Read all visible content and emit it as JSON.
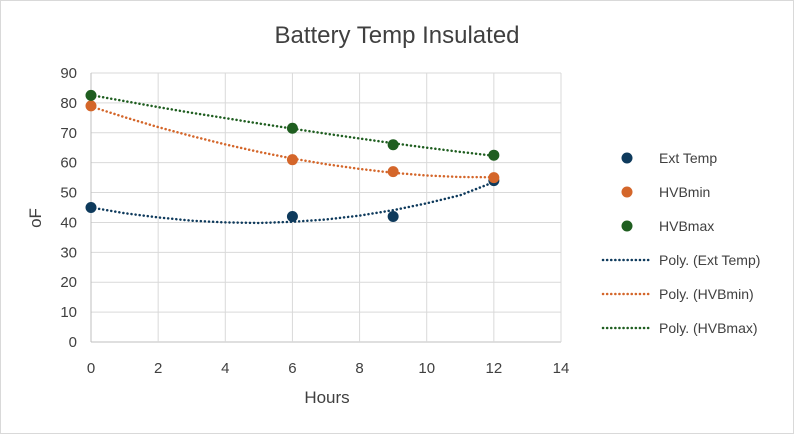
{
  "chart_data": {
    "type": "scatter",
    "title": "Battery Temp Insulated",
    "xlabel": "Hours",
    "ylabel": "oF",
    "xlim": [
      0,
      14
    ],
    "ylim": [
      0,
      90
    ],
    "x_ticks": [
      0,
      2,
      4,
      6,
      8,
      10,
      12,
      14
    ],
    "y_ticks": [
      0,
      10,
      20,
      30,
      40,
      50,
      60,
      70,
      80,
      90
    ],
    "grid": true,
    "legend_position": "right",
    "series": [
      {
        "name": "Ext Temp",
        "color": "#0e3a5c",
        "x": [
          0,
          6,
          9,
          12
        ],
        "y": [
          45,
          42,
          42,
          54
        ]
      },
      {
        "name": "HVBmin",
        "color": "#d4662a",
        "x": [
          0,
          6,
          9,
          12
        ],
        "y": [
          79,
          61,
          57,
          55
        ]
      },
      {
        "name": "HVBmax",
        "color": "#1f5e20",
        "x": [
          0,
          6,
          9,
          12
        ],
        "y": [
          82.5,
          71.5,
          66,
          62.5
        ]
      }
    ],
    "trendlines": [
      {
        "name": "Poly. (Ext Temp)",
        "color": "#0e3a5c",
        "type": "polynomial",
        "x": [
          0,
          1,
          2,
          3,
          4,
          5,
          6,
          7,
          8,
          9,
          10,
          11,
          12
        ],
        "y": [
          45,
          43.1,
          41.7,
          40.6,
          40.0,
          39.8,
          40.2,
          41.0,
          42.3,
          44.1,
          46.4,
          49.1,
          53.5
        ]
      },
      {
        "name": "Poly. (HVBmin)",
        "color": "#d4662a",
        "type": "polynomial",
        "x": [
          0,
          1,
          2,
          3,
          4,
          5,
          6,
          7,
          8,
          9,
          10,
          11,
          12
        ],
        "y": [
          78.8,
          75.2,
          71.9,
          68.9,
          66.1,
          63.6,
          61.4,
          59.5,
          57.9,
          56.6,
          55.7,
          55.2,
          55.1
        ]
      },
      {
        "name": "Poly. (HVBmax)",
        "color": "#1f5e20",
        "type": "polynomial",
        "x": [
          0,
          1,
          2,
          3,
          4,
          5,
          6,
          7,
          8,
          9,
          10,
          11,
          12
        ],
        "y": [
          82.6,
          80.6,
          78.6,
          76.7,
          74.9,
          73.1,
          71.4,
          69.7,
          68.1,
          66.5,
          65.0,
          63.6,
          62.3
        ]
      }
    ]
  }
}
